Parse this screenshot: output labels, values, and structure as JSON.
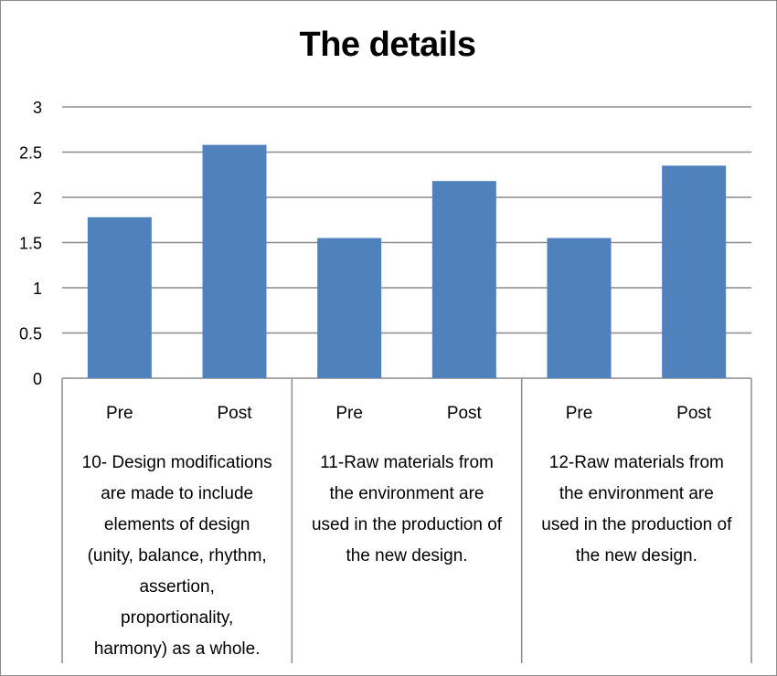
{
  "chart_data": {
    "type": "bar",
    "title": "The details",
    "xlabel": "",
    "ylabel": "",
    "ylim": [
      0,
      3
    ],
    "yticks": [
      0,
      0.5,
      1,
      1.5,
      2,
      2.5,
      3
    ],
    "ytick_labels": [
      "0",
      "0.5",
      "1",
      "1.5",
      "2",
      "2.5",
      "3"
    ],
    "grid": true,
    "legend": "none",
    "bar_color": "#4f81bd",
    "groups": [
      {
        "label": "10- Design modifications are made to include elements of design (unity, balance, rhythm, assertion, proportionality, harmony) as a whole.",
        "label_lines": [
          "10- Design modifications",
          "are made to include",
          "elements of design",
          "(unity, balance, rhythm,",
          "assertion,",
          "proportionality,",
          "harmony) as a whole."
        ],
        "categories": [
          "Pre",
          "Post"
        ],
        "values": [
          1.78,
          2.58
        ]
      },
      {
        "label": "11-Raw materials from the environment are used in the production of the new design.",
        "label_lines": [
          "11-Raw materials from",
          "the environment are",
          "used in the production of",
          "the new design."
        ],
        "categories": [
          "Pre",
          "Post"
        ],
        "values": [
          1.55,
          2.18
        ]
      },
      {
        "label": "12-Raw materials from the environment are used in the production of the new design.",
        "label_lines": [
          "12-Raw materials from",
          "the environment are",
          "used in the production of",
          "the new design."
        ],
        "categories": [
          "Pre",
          "Post"
        ],
        "values": [
          1.55,
          2.35
        ]
      }
    ]
  }
}
